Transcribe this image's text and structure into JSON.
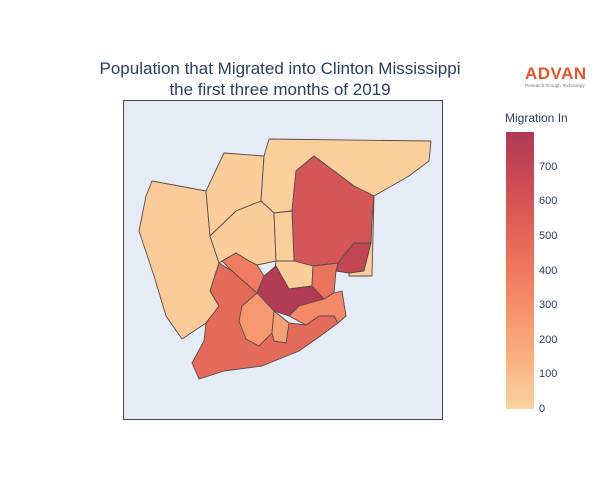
{
  "title_line1": "Population that Migrated into Clinton Mississippi",
  "title_line2": "the first three months of 2019",
  "logo": {
    "word": "ADVAN",
    "tagline": "Research through Technology",
    "color": "#e8552b"
  },
  "colorbar": {
    "title": "Migration In",
    "min": 0,
    "max": 800,
    "ticks": [
      {
        "value": 0,
        "label": "0"
      },
      {
        "value": 100,
        "label": "100"
      },
      {
        "value": 200,
        "label": "200"
      },
      {
        "value": 300,
        "label": "300"
      },
      {
        "value": 400,
        "label": "400"
      },
      {
        "value": 500,
        "label": "500"
      },
      {
        "value": 600,
        "label": "600"
      },
      {
        "value": 700,
        "label": "700"
      }
    ],
    "colors": [
      "#fbd4a0",
      "#f9b384",
      "#f7956f",
      "#ee785f",
      "#de6157",
      "#c94a54",
      "#ad3a53"
    ]
  },
  "chart_data": {
    "type": "choropleth",
    "value_label": "Migration In",
    "regions": [
      {
        "name": "west",
        "value": 40
      },
      {
        "name": "northwest",
        "value": 30
      },
      {
        "name": "northeast",
        "value": 20
      },
      {
        "name": "east-large",
        "value": 600
      },
      {
        "name": "east-lower",
        "value": 700
      },
      {
        "name": "center-west",
        "value": 30
      },
      {
        "name": "center-north",
        "value": 20
      },
      {
        "name": "center-small",
        "value": 30
      },
      {
        "name": "southwest-large",
        "value": 480
      },
      {
        "name": "center-left",
        "value": 380
      },
      {
        "name": "center-hot",
        "value": 780
      },
      {
        "name": "east-small-1",
        "value": 430
      },
      {
        "name": "east-small-2",
        "value": 320
      },
      {
        "name": "south-inner",
        "value": 260
      },
      {
        "name": "south-center",
        "value": 220
      },
      {
        "name": "east-edge",
        "value": 30
      }
    ]
  }
}
